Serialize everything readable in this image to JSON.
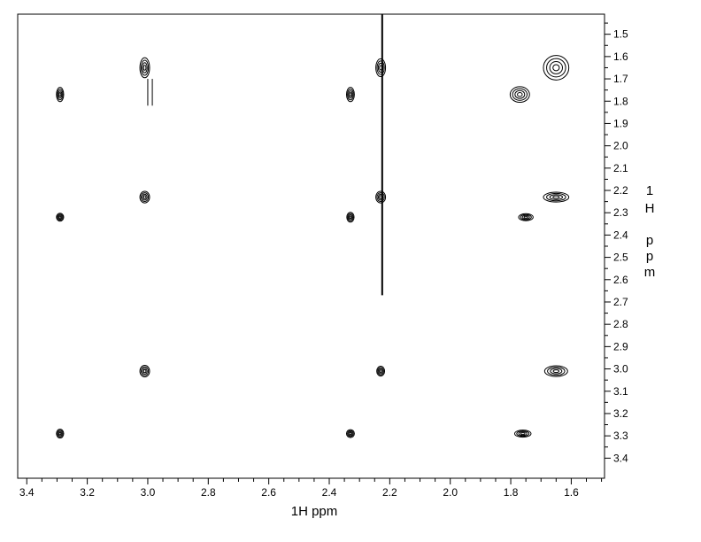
{
  "chart_data": {
    "type": "contour",
    "title": "",
    "xlabel": "1H ppm",
    "ylabel_chars": [
      "1",
      "H",
      "",
      "p",
      "p",
      "m"
    ],
    "x_axis": {
      "reversed": true,
      "range": [
        3.43,
        1.49
      ],
      "ticks": [
        "3.4",
        "3.2",
        "3.0",
        "2.8",
        "2.6",
        "2.4",
        "2.2",
        "2.0",
        "1.8",
        "1.6"
      ]
    },
    "y_axis": {
      "reversed": true,
      "position": "right",
      "range": [
        1.41,
        3.49
      ],
      "ticks": [
        "1.5",
        "1.6",
        "1.7",
        "1.8",
        "1.9",
        "2.0",
        "2.1",
        "2.2",
        "2.3",
        "2.4",
        "2.5",
        "2.6",
        "2.7",
        "2.8",
        "2.9",
        "3.0",
        "3.1",
        "3.2",
        "3.3",
        "3.4"
      ]
    },
    "grid": false,
    "peaks": [
      {
        "x": 3.29,
        "y": 1.77,
        "wx": 0.012,
        "wy": 0.032
      },
      {
        "x": 3.29,
        "y": 2.32,
        "wx": 0.012,
        "wy": 0.018
      },
      {
        "x": 3.29,
        "y": 3.29,
        "wx": 0.012,
        "wy": 0.02
      },
      {
        "x": 3.01,
        "y": 1.65,
        "wx": 0.016,
        "wy": 0.045
      },
      {
        "x": 3.01,
        "y": 2.23,
        "wx": 0.016,
        "wy": 0.026
      },
      {
        "x": 3.01,
        "y": 3.01,
        "wx": 0.016,
        "wy": 0.026
      },
      {
        "x": 2.33,
        "y": 1.77,
        "wx": 0.013,
        "wy": 0.032
      },
      {
        "x": 2.33,
        "y": 2.32,
        "wx": 0.012,
        "wy": 0.022
      },
      {
        "x": 2.33,
        "y": 3.29,
        "wx": 0.013,
        "wy": 0.018
      },
      {
        "x": 2.23,
        "y": 1.65,
        "wx": 0.016,
        "wy": 0.04
      },
      {
        "x": 2.23,
        "y": 2.23,
        "wx": 0.016,
        "wy": 0.026
      },
      {
        "x": 2.23,
        "y": 3.01,
        "wx": 0.013,
        "wy": 0.022
      },
      {
        "x": 1.77,
        "y": 1.77,
        "wx": 0.032,
        "wy": 0.035
      },
      {
        "x": 1.75,
        "y": 2.32,
        "wx": 0.024,
        "wy": 0.014
      },
      {
        "x": 1.76,
        "y": 3.29,
        "wx": 0.027,
        "wy": 0.014
      },
      {
        "x": 1.65,
        "y": 1.65,
        "wx": 0.042,
        "wy": 0.055
      },
      {
        "x": 1.65,
        "y": 2.23,
        "wx": 0.042,
        "wy": 0.022
      },
      {
        "x": 1.65,
        "y": 3.01,
        "wx": 0.038,
        "wy": 0.024
      }
    ],
    "artifacts": [
      {
        "x": 2.225,
        "y_start": 1.41,
        "y_end": 2.67
      },
      {
        "x": 3.0,
        "y_start": 1.7,
        "y_end": 1.82
      },
      {
        "x": 2.985,
        "y_start": 1.7,
        "y_end": 1.82
      }
    ]
  }
}
